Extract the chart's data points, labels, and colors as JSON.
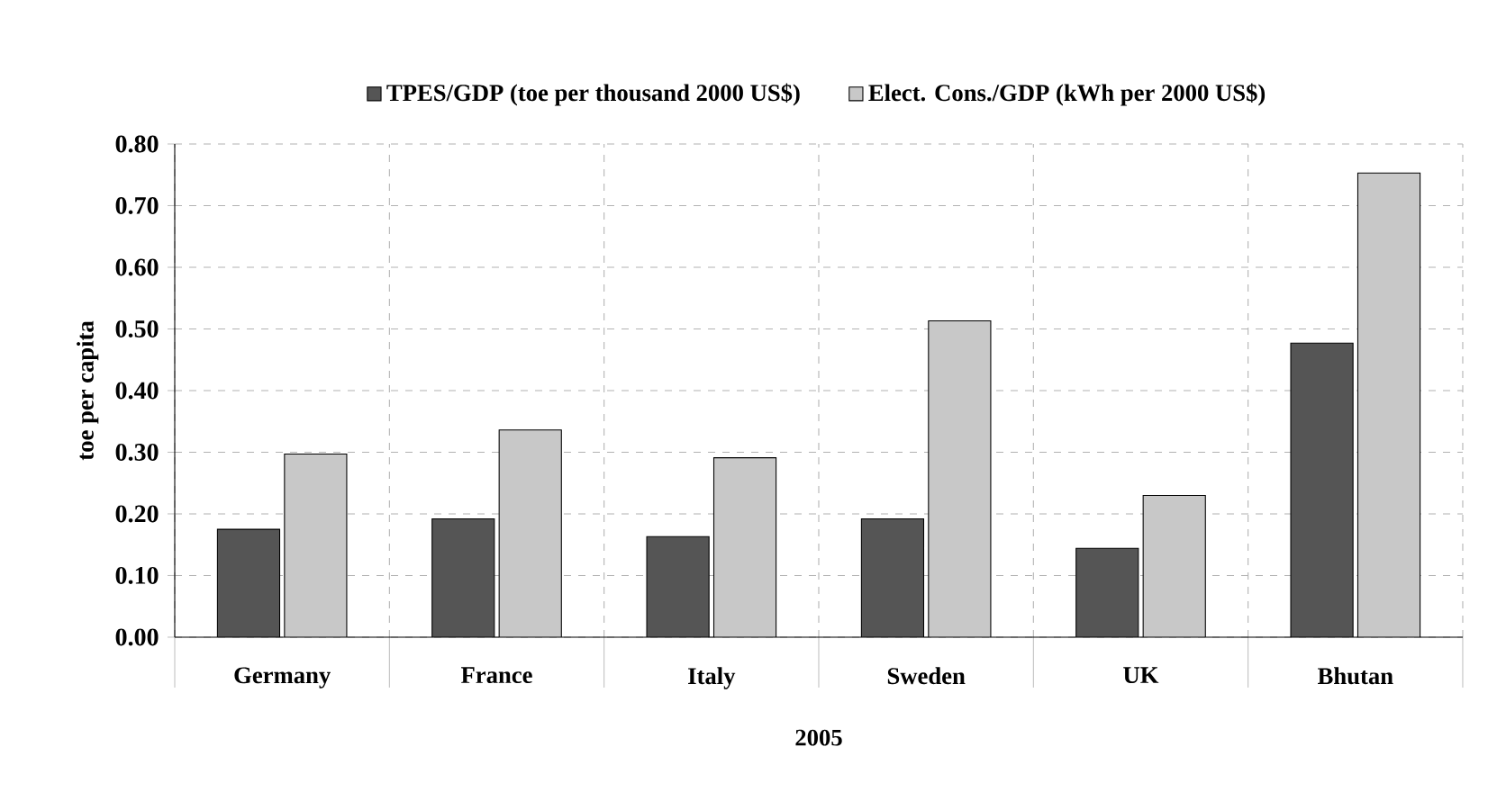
{
  "chart_data": {
    "type": "bar",
    "categories": [
      "Germany",
      "France",
      "Italy",
      "Sweden",
      "UK",
      "Bhutan"
    ],
    "xlabel": "2005",
    "ylabel": "toe per capita",
    "series": [
      {
        "name": "TPES/GDP (toe per thousand 2000 US$)",
        "color": "#555555",
        "values": [
          0.175,
          0.192,
          0.163,
          0.192,
          0.144,
          0.477
        ]
      },
      {
        "name": "Elect. Cons./GDP (kWh per 2000 US$)",
        "color": "#c8c8c8",
        "values": [
          0.297,
          0.336,
          0.291,
          0.513,
          0.23,
          0.753
        ]
      }
    ],
    "ylim": [
      0,
      0.8
    ],
    "yticks": [
      {
        "value": 0,
        "label": "0.00"
      },
      {
        "value": 0.1,
        "label": "0.10"
      },
      {
        "value": 0.2,
        "label": "0.20"
      },
      {
        "value": 0.3,
        "label": "0.30"
      },
      {
        "value": 0.4,
        "label": "0.40"
      },
      {
        "value": 0.5,
        "label": "0.50"
      },
      {
        "value": 0.6,
        "label": "0.60"
      },
      {
        "value": 0.7,
        "label": "0.70"
      },
      {
        "value": 0.8,
        "label": "0.80"
      }
    ],
    "grid": true,
    "legend": "top"
  }
}
